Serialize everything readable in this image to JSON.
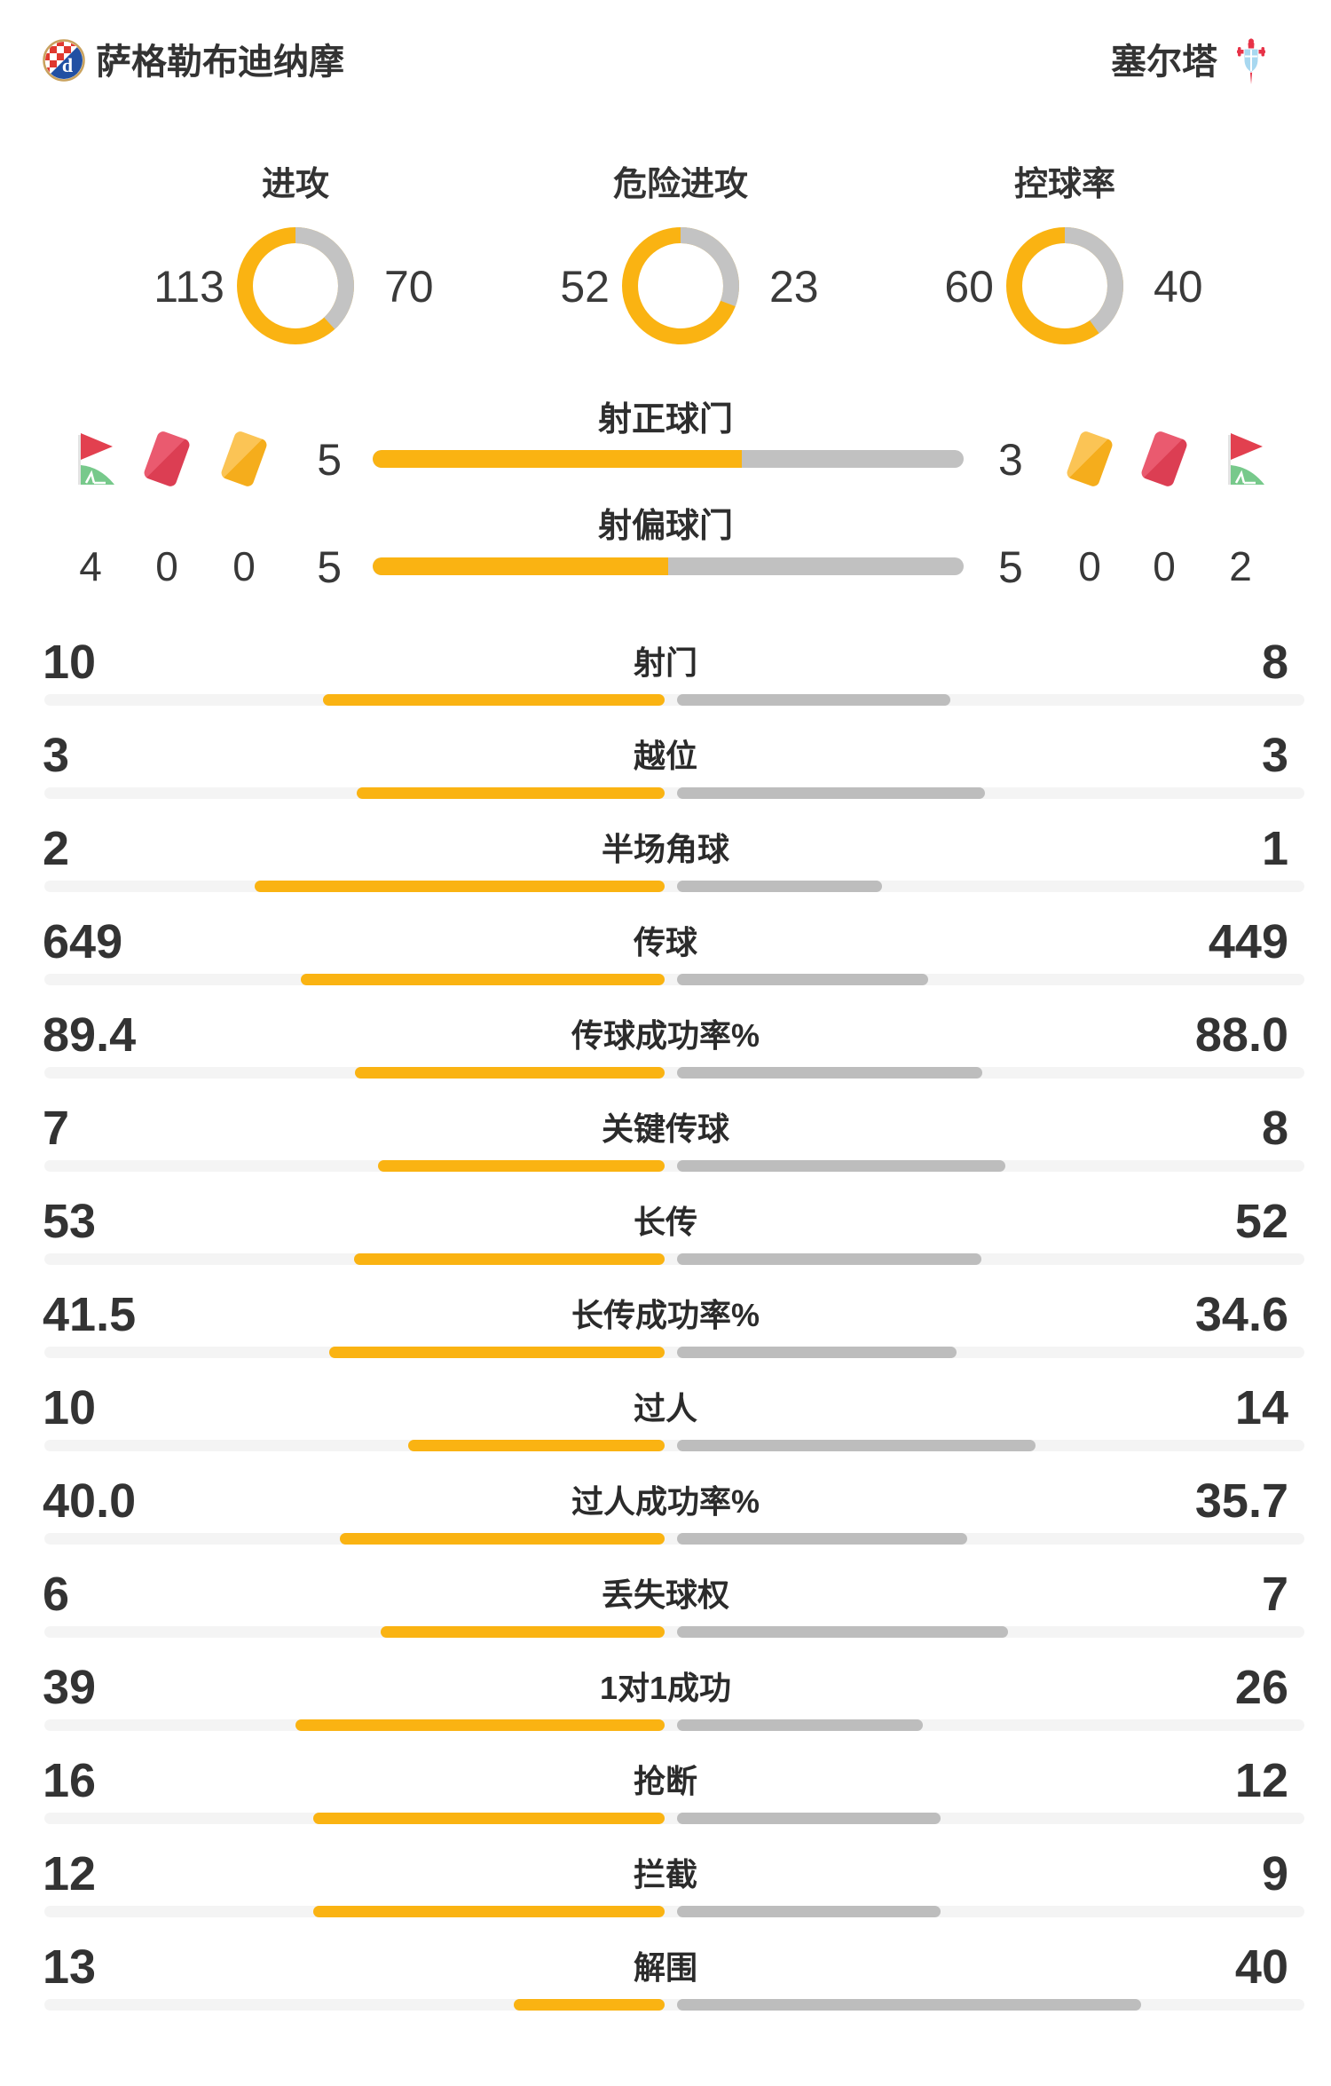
{
  "header": {
    "home": {
      "name": "萨格勒布迪纳摩",
      "logo": "dinamo-zagreb-crest"
    },
    "away": {
      "name": "塞尔塔",
      "logo": "celta-vigo-crest"
    }
  },
  "colors": {
    "home_bar": "#fab312",
    "away_bar": "#bdbdbd",
    "donut_away": "#c3c3c3",
    "track": "#f4f4f4",
    "text": "#333333",
    "red_card": "#dc3e53",
    "yellow_card": "#f5ad1c",
    "flag_red": "#e2404f",
    "flag_green": "#77c98b"
  },
  "chart_data": {
    "type": "team-comparison",
    "home_team": "萨格勒布迪纳摩",
    "away_team": "塞尔塔",
    "legend_position": "none",
    "donuts": [
      {
        "label": "进攻",
        "home": 113,
        "away": 70
      },
      {
        "label": "危险进攻",
        "home": 52,
        "away": 23
      },
      {
        "label": "控球率",
        "home": 60,
        "away": 40
      }
    ],
    "shot_bars": [
      {
        "label": "射正球门",
        "home": 5,
        "away": 3
      },
      {
        "label": "射偏球门",
        "home": 5,
        "away": 5
      }
    ],
    "cards_and_corners": {
      "home": {
        "corners": "4",
        "red_cards": "0",
        "yellow_cards": "0"
      },
      "away": {
        "corners": "2",
        "red_cards": "0",
        "yellow_cards": "0"
      }
    },
    "stats": [
      {
        "label": "射门",
        "home": "10",
        "away": "8"
      },
      {
        "label": "越位",
        "home": "3",
        "away": "3"
      },
      {
        "label": "半场角球",
        "home": "2",
        "away": "1"
      },
      {
        "label": "传球",
        "home": "649",
        "away": "449"
      },
      {
        "label": "传球成功率%",
        "home": "89.4",
        "away": "88.0"
      },
      {
        "label": "关键传球",
        "home": "7",
        "away": "8"
      },
      {
        "label": "长传",
        "home": "53",
        "away": "52"
      },
      {
        "label": "长传成功率%",
        "home": "41.5",
        "away": "34.6"
      },
      {
        "label": "过人",
        "home": "10",
        "away": "14"
      },
      {
        "label": "过人成功率%",
        "home": "40.0",
        "away": "35.7"
      },
      {
        "label": "丢失球权",
        "home": "6",
        "away": "7"
      },
      {
        "label": "1对1成功",
        "home": "39",
        "away": "26"
      },
      {
        "label": "抢断",
        "home": "16",
        "away": "12"
      },
      {
        "label": "拦截",
        "home": "12",
        "away": "9"
      },
      {
        "label": "解围",
        "home": "13",
        "away": "40"
      }
    ]
  }
}
